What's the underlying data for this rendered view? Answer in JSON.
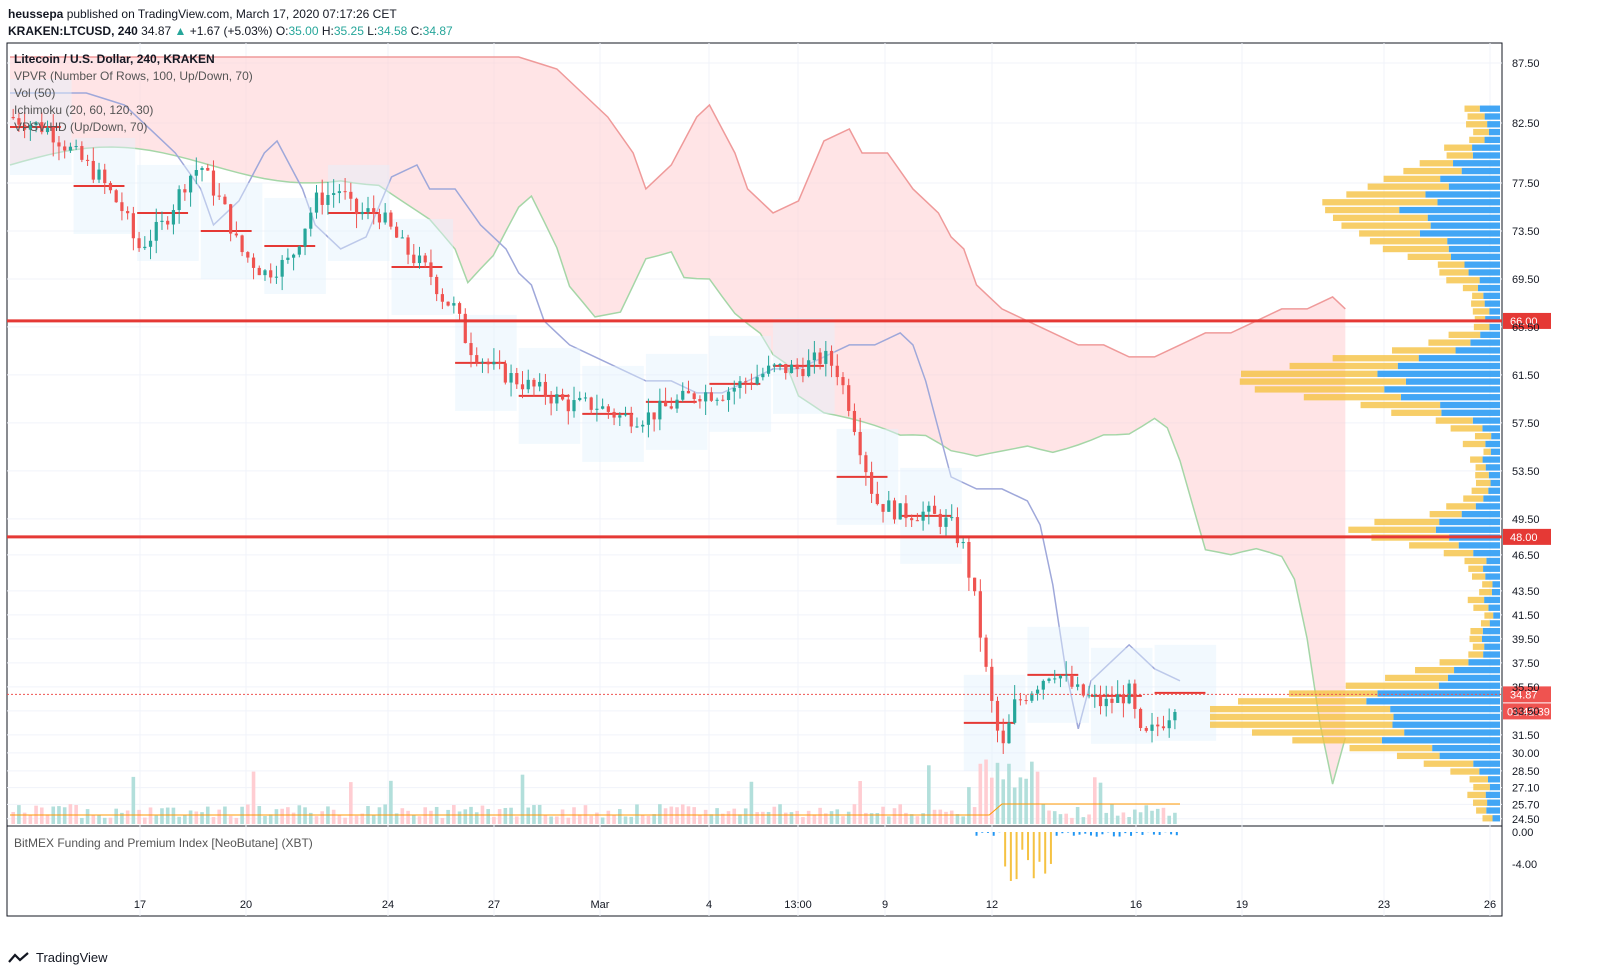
{
  "header": {
    "author": "heussepa",
    "published_text": " published on TradingView.com, March 17, 2020 07:17:26 CET"
  },
  "quote": {
    "symbol": "KRAKEN:LTCUSD, 240",
    "price": "34.87",
    "change": "+1.67 (+5.03%)",
    "o_label": "O:",
    "o": "35.00",
    "h_label": "H:",
    "h": "35.25",
    "l_label": "L:",
    "l": "34.58",
    "c_label": "C:",
    "c": "34.87"
  },
  "legend": {
    "title": "Litecoin / U.S. Dollar, 240, KRAKEN",
    "items": [
      "VPVR (Number Of Rows, 100, Up/Down, 70)",
      "Vol (50)",
      "Ichimoku (20, 60, 120, 30)",
      "VPSV HD (Up/Down, 70)"
    ]
  },
  "sub_pane": {
    "title": "BitMEX Funding and Premium Index [NeoButane] (XBT)",
    "ticks": [
      "0.00",
      "-4.00"
    ]
  },
  "footer": {
    "brand": "TradingView"
  },
  "colors": {
    "up": "#26a69a",
    "down": "#ef5350",
    "level": "#e53935",
    "cloud_bull": "#c8e6c9",
    "cloud_bear": "#ffcdd2",
    "vp_up": "#2196f3",
    "vp_down": "#f5c242",
    "base_line": "#9fa8da"
  },
  "chart_data": {
    "type": "candlestick",
    "y_axis_ticks": [
      "87.50",
      "82.50",
      "77.50",
      "73.50",
      "69.50",
      "65.50",
      "61.50",
      "57.50",
      "53.50",
      "49.50",
      "46.50",
      "43.50",
      "41.50",
      "39.50",
      "37.50",
      "35.50",
      "33.50",
      "31.50",
      "30.00",
      "28.50",
      "27.10",
      "25.70",
      "24.50"
    ],
    "x_axis_ticks": [
      "17",
      "20",
      "24",
      "27",
      "Mar",
      "4",
      "13:00",
      "9",
      "12",
      "16",
      "19",
      "23",
      "26"
    ],
    "ylim": [
      23.5,
      89
    ],
    "horizontal_levels": [
      {
        "label": "66.00",
        "value": 66.0
      },
      {
        "label": "48.00",
        "value": 48.0
      }
    ],
    "last_price": {
      "label": "34.87",
      "value": 34.87,
      "countdown": "01:42:39"
    },
    "price_path": [
      [
        0,
        83
      ],
      [
        3,
        82
      ],
      [
        5,
        80
      ],
      [
        7,
        78
      ],
      [
        9,
        75
      ],
      [
        10,
        72
      ],
      [
        12,
        74
      ],
      [
        14,
        78
      ],
      [
        15,
        79
      ],
      [
        17,
        75
      ],
      [
        18,
        72
      ],
      [
        20,
        70
      ],
      [
        22,
        71
      ],
      [
        24,
        76
      ],
      [
        26,
        77
      ],
      [
        27,
        75
      ],
      [
        29,
        75
      ],
      [
        31,
        72
      ],
      [
        33,
        70
      ],
      [
        34,
        68
      ],
      [
        35,
        67
      ],
      [
        36,
        64
      ],
      [
        38,
        62
      ],
      [
        40,
        61
      ],
      [
        42,
        60
      ],
      [
        44,
        59
      ],
      [
        46,
        59
      ],
      [
        48,
        58
      ],
      [
        50,
        58
      ],
      [
        52,
        59
      ],
      [
        54,
        60
      ],
      [
        56,
        60
      ],
      [
        58,
        61
      ],
      [
        60,
        62
      ],
      [
        62,
        62
      ],
      [
        64,
        63
      ],
      [
        65,
        62
      ],
      [
        66,
        59
      ],
      [
        67,
        55
      ],
      [
        68,
        51
      ],
      [
        70,
        50
      ],
      [
        72,
        50
      ],
      [
        74,
        49
      ],
      [
        75,
        47
      ],
      [
        76,
        42
      ],
      [
        77,
        35
      ],
      [
        78,
        30
      ],
      [
        79,
        34
      ],
      [
        80,
        35
      ],
      [
        82,
        37
      ],
      [
        84,
        35
      ],
      [
        86,
        34
      ],
      [
        88,
        35
      ],
      [
        89,
        31
      ],
      [
        90,
        32
      ],
      [
        91,
        33
      ],
      [
        92,
        35
      ]
    ],
    "x_range_days": [
      0,
      113
    ],
    "volume_note": "volume bars along bottom of main pane"
  }
}
